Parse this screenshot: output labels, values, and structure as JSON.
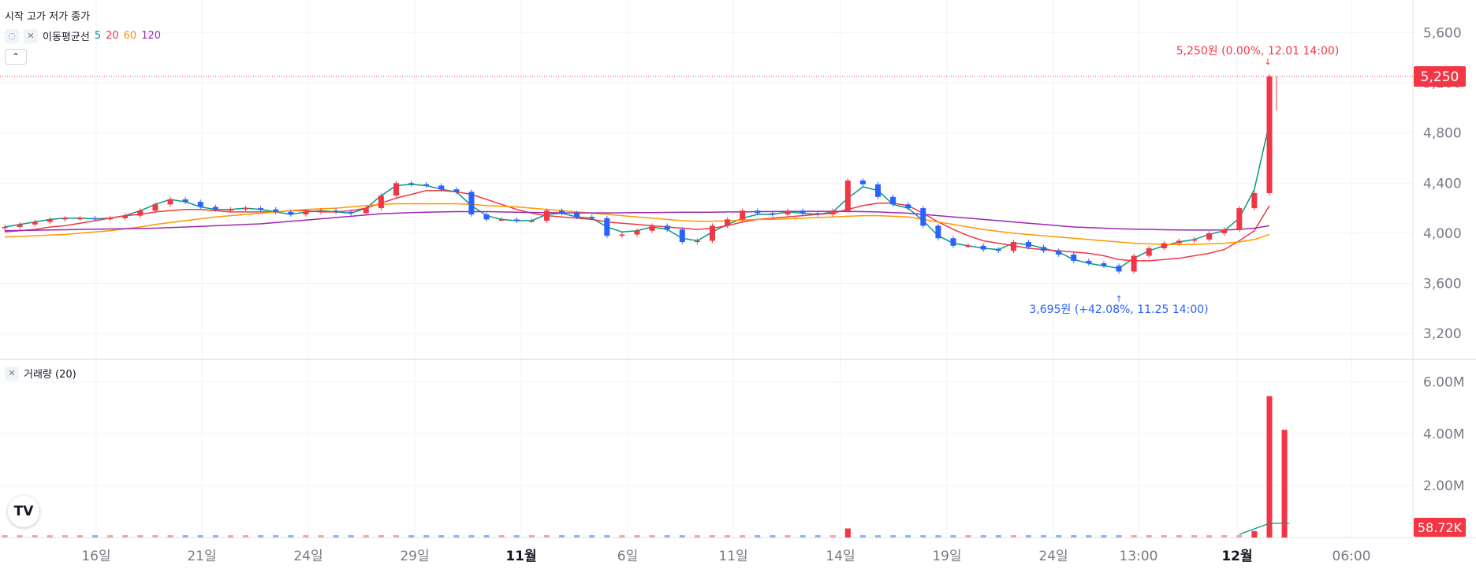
{
  "legend": {
    "ohlc_label": "시작 고가 저가 종가",
    "ma_label": "이동평균선",
    "ma_periods": [
      "5",
      "20",
      "60",
      "120"
    ],
    "hide_icon": "eye-off-icon",
    "close_icon": "close-icon",
    "collapse_icon": "chevron-up-icon"
  },
  "volume_legend": {
    "label": "거래량 (20)"
  },
  "logo_text": "TV",
  "colors": {
    "up": "#f23645",
    "down": "#2962ff",
    "ma5": "#089981",
    "ma20": "#f23645",
    "ma60": "#ff9800",
    "ma120": "#9c27b0"
  },
  "chart_data": [
    {
      "type": "candlestick",
      "title": "",
      "x_ticks": [
        "16일",
        "21일",
        "24일",
        "29일",
        "11월",
        "6일",
        "11일",
        "14일",
        "19일",
        "24일",
        "13:00",
        "12월",
        "06:00"
      ],
      "y_ticks": [
        "5,600",
        "5,200",
        "4,800",
        "4,400",
        "4,000",
        "3,600",
        "3,200"
      ],
      "ylim": [
        3200,
        5600
      ],
      "last_price": 5250,
      "last_price_label": "5,250",
      "high_annotation": "5,250원 (0.00%, 12.01 14:00)",
      "low_annotation": "3,695원 (+42.08%, 11.25 14:00)",
      "moving_averages": [
        {
          "name": "5",
          "values": [
            4050,
            4070,
            4090,
            4110,
            4120,
            4120,
            4115,
            4120,
            4140,
            4180,
            4230,
            4270,
            4250,
            4210,
            4190,
            4190,
            4200,
            4190,
            4170,
            4150,
            4170,
            4180,
            4170,
            4160,
            4200,
            4300,
            4380,
            4390,
            4380,
            4350,
            4330,
            4220,
            4140,
            4110,
            4100,
            4100,
            4150,
            4160,
            4130,
            4120,
            4050,
            4010,
            4020,
            4050,
            4030,
            3960,
            3940,
            4010,
            4070,
            4120,
            4150,
            4150,
            4170,
            4160,
            4150,
            4170,
            4280,
            4370,
            4340,
            4230,
            4200,
            4100,
            3980,
            3920,
            3900,
            3880,
            3870,
            3920,
            3910,
            3880,
            3850,
            3790,
            3760,
            3740,
            3720,
            3800,
            3860,
            3900,
            3930,
            3950,
            3990,
            4020,
            4120,
            4350,
            4880
          ]
        },
        {
          "name": "20",
          "values": [
            4010,
            4020,
            4030,
            4050,
            4060,
            4080,
            4100,
            4120,
            4140,
            4150,
            4170,
            4180,
            4190,
            4190,
            4180,
            4170,
            4170,
            4170,
            4170,
            4180,
            4180,
            4170,
            4170,
            4180,
            4200,
            4240,
            4280,
            4310,
            4340,
            4340,
            4330,
            4310,
            4270,
            4230,
            4190,
            4160,
            4140,
            4130,
            4120,
            4110,
            4090,
            4080,
            4070,
            4060,
            4050,
            4040,
            4030,
            4040,
            4060,
            4090,
            4110,
            4120,
            4130,
            4140,
            4150,
            4160,
            4190,
            4220,
            4240,
            4240,
            4220,
            4160,
            4090,
            4030,
            3980,
            3940,
            3920,
            3900,
            3880,
            3870,
            3860,
            3850,
            3840,
            3820,
            3790,
            3780,
            3780,
            3790,
            3800,
            3820,
            3840,
            3870,
            3940,
            4020,
            4220
          ]
        },
        {
          "name": "60",
          "values": [
            3970,
            3975,
            3980,
            3985,
            3990,
            4000,
            4010,
            4020,
            4035,
            4050,
            4070,
            4085,
            4100,
            4115,
            4130,
            4140,
            4150,
            4160,
            4170,
            4180,
            4190,
            4195,
            4200,
            4210,
            4220,
            4230,
            4235,
            4235,
            4235,
            4235,
            4235,
            4230,
            4220,
            4215,
            4210,
            4200,
            4190,
            4180,
            4170,
            4160,
            4150,
            4140,
            4130,
            4120,
            4110,
            4100,
            4095,
            4095,
            4100,
            4105,
            4110,
            4110,
            4115,
            4120,
            4125,
            4130,
            4135,
            4140,
            4140,
            4135,
            4130,
            4110,
            4090,
            4070,
            4050,
            4030,
            4015,
            4000,
            3990,
            3980,
            3970,
            3960,
            3950,
            3940,
            3930,
            3920,
            3915,
            3910,
            3910,
            3910,
            3915,
            3920,
            3930,
            3950,
            3990
          ]
        },
        {
          "name": "120",
          "values": [
            4020,
            4022,
            4024,
            4026,
            4028,
            4030,
            4032,
            4034,
            4036,
            4038,
            4040,
            4045,
            4050,
            4055,
            4060,
            4065,
            4070,
            4075,
            4085,
            4095,
            4105,
            4115,
            4125,
            4135,
            4145,
            4155,
            4160,
            4165,
            4168,
            4170,
            4172,
            4172,
            4172,
            4170,
            4168,
            4166,
            4164,
            4163,
            4162,
            4162,
            4162,
            4163,
            4164,
            4165,
            4166,
            4167,
            4168,
            4168,
            4170,
            4170,
            4172,
            4173,
            4174,
            4175,
            4175,
            4175,
            4174,
            4172,
            4170,
            4165,
            4160,
            4150,
            4140,
            4130,
            4120,
            4110,
            4100,
            4090,
            4080,
            4070,
            4060,
            4050,
            4045,
            4040,
            4036,
            4032,
            4030,
            4028,
            4026,
            4025,
            4025,
            4026,
            4030,
            4040,
            4060
          ]
        }
      ],
      "closes": [
        4050,
        4070,
        4090,
        4110,
        4120,
        4120,
        4115,
        4120,
        4140,
        4180,
        4230,
        4270,
        4250,
        4210,
        4190,
        4190,
        4200,
        4190,
        4170,
        4150,
        4170,
        4180,
        4170,
        4160,
        4200,
        4300,
        4400,
        4390,
        4380,
        4350,
        4330,
        4150,
        4110,
        4110,
        4100,
        4100,
        4180,
        4160,
        4130,
        4120,
        3980,
        3990,
        4020,
        4060,
        4030,
        3930,
        3940,
        4060,
        4110,
        4180,
        4160,
        4150,
        4180,
        4160,
        4150,
        4180,
        4420,
        4390,
        4290,
        4230,
        4200,
        4060,
        3960,
        3900,
        3900,
        3870,
        3860,
        3930,
        3890,
        3860,
        3830,
        3780,
        3760,
        3740,
        3695,
        3820,
        3880,
        3920,
        3940,
        3950,
        4000,
        4030,
        4200,
        4320,
        5250
      ],
      "volume": {
        "y_ticks": [
          "6.00M",
          "4.00M",
          "2.00M"
        ],
        "ylim": [
          0,
          6500000
        ],
        "last_label": "58.72K",
        "spikes": [
          {
            "index": 56,
            "value": 350000
          },
          {
            "index": 83,
            "value": 250000
          },
          {
            "index": 84,
            "value": 5450000
          },
          {
            "index": 85,
            "value": 4150000
          }
        ]
      }
    }
  ]
}
